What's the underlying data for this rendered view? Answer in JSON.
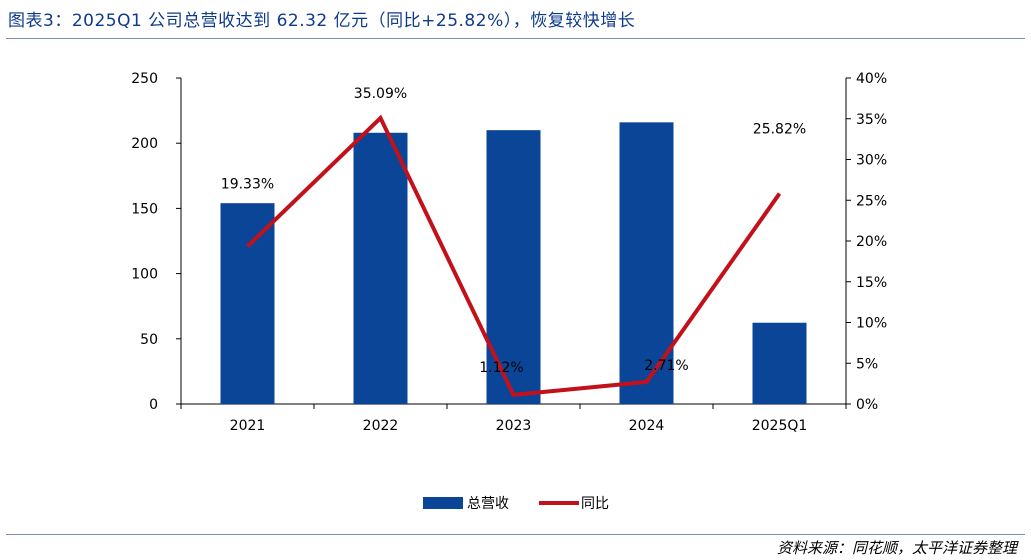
{
  "title": "图表3：2025Q1 公司总营收达到 62.32 亿元（同比+25.82%），恢复较快增长",
  "source": "资料来源：同花顺，太平洋证券整理",
  "colors": {
    "bar": "#0a4597",
    "line": "#c3111b",
    "title": "#0e3a8c"
  },
  "chart_data": {
    "type": "bar",
    "categories": [
      "2021",
      "2022",
      "2023",
      "2024",
      "2025Q1"
    ],
    "series": [
      {
        "name": "总营收",
        "type": "bar",
        "axis": "left",
        "values": [
          154,
          208,
          210,
          216,
          62.32
        ]
      },
      {
        "name": "同比",
        "type": "line",
        "axis": "right",
        "values": [
          19.33,
          35.09,
          1.12,
          2.71,
          25.82
        ],
        "labels": [
          "19.33%",
          "35.09%",
          "1.12%",
          "2.71%",
          "25.82%"
        ]
      }
    ],
    "y_left": {
      "min": 0,
      "max": 250,
      "ticks": [
        "0",
        "50",
        "100",
        "150",
        "200",
        "250"
      ]
    },
    "y_right": {
      "min": 0,
      "max": 40,
      "ticks": [
        "0%",
        "5%",
        "10%",
        "15%",
        "20%",
        "25%",
        "30%",
        "35%",
        "40%"
      ]
    },
    "legend_position": "bottom-center",
    "grid": false
  }
}
